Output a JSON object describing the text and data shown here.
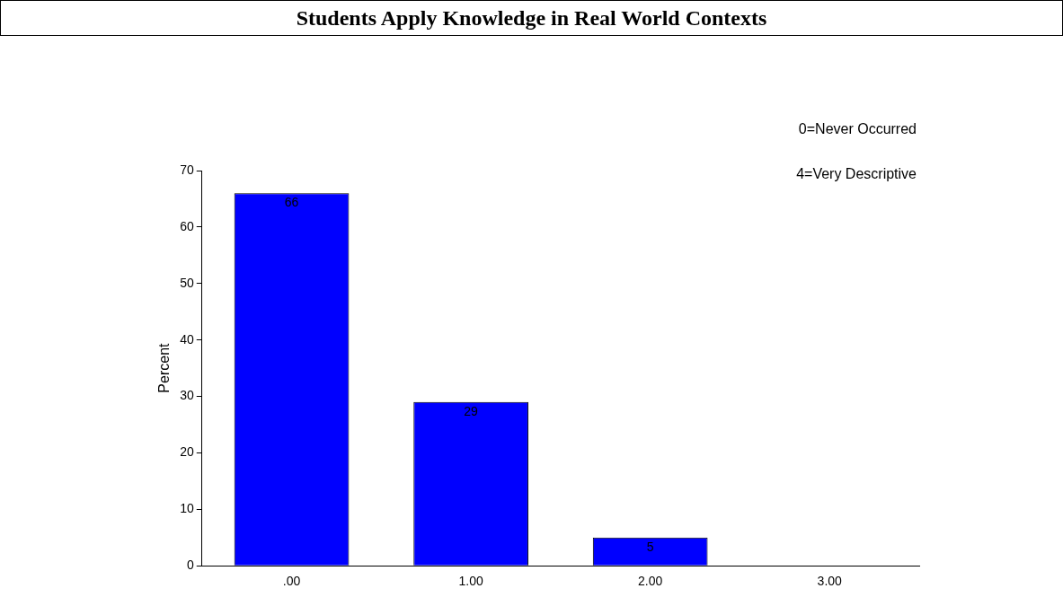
{
  "chart_data": {
    "type": "bar",
    "title": "Students Apply Knowledge in Real World Contexts",
    "annotations": [
      "0=Never Occurred",
      "4=Very Descriptive"
    ],
    "ylabel": "Percent",
    "categories": [
      ".00",
      "1.00",
      "2.00",
      "3.00"
    ],
    "values": [
      66,
      29,
      5,
      0
    ],
    "value_labels": [
      "66",
      "29",
      "5",
      null
    ],
    "color": "#0000ff",
    "ylim": [
      0,
      70
    ],
    "yticks": [
      0,
      10,
      20,
      30,
      40,
      50,
      60,
      70
    ],
    "grid": false,
    "legend": false
  }
}
